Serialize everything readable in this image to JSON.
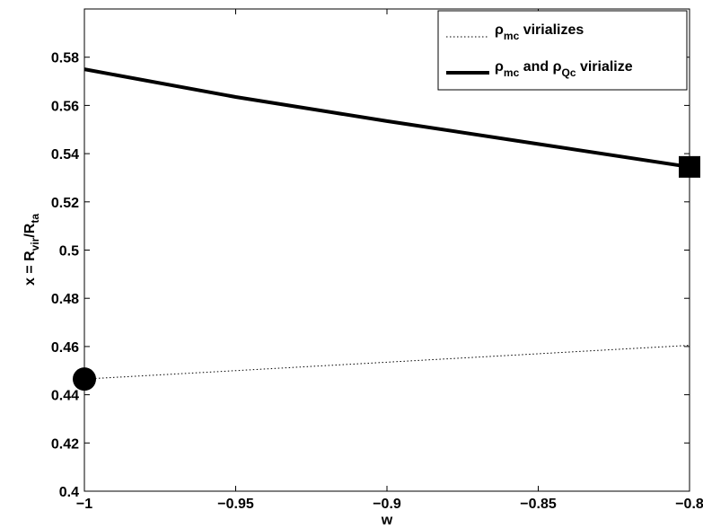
{
  "chart_data": {
    "type": "line",
    "xlabel": "w",
    "ylabel": {
      "prefix": "x = R",
      "sub1": "vir",
      "mid": "/R",
      "sub2": "ta"
    },
    "xlim": [
      -1,
      -0.8
    ],
    "ylim": [
      0.4,
      0.6
    ],
    "xticks": [
      -1,
      -0.95,
      -0.9,
      -0.85,
      -0.8
    ],
    "xtick_labels": [
      "−1",
      "−0.95",
      "−0.9",
      "−0.85",
      "−0.8"
    ],
    "yticks": [
      0.4,
      0.42,
      0.44,
      0.46,
      0.48,
      0.5,
      0.52,
      0.54,
      0.56,
      0.58
    ],
    "ytick_labels": [
      "0.4",
      "0.42",
      "0.44",
      "0.46",
      "0.48",
      "0.5",
      "0.52",
      "0.54",
      "0.56",
      "0.58"
    ],
    "grid": false,
    "legend_position": "top-right",
    "series": [
      {
        "legend": {
          "rho": "ρ",
          "sub1": "mc",
          "text": " virializes"
        },
        "style": "dotted",
        "x": [
          -1,
          -0.95,
          -0.9,
          -0.85,
          -0.8
        ],
        "y": [
          0.4465,
          0.45,
          0.4535,
          0.457,
          0.4605
        ],
        "endpoint_marker": {
          "shape": "circle",
          "x": -1,
          "y": 0.4465
        }
      },
      {
        "legend": {
          "rho": "ρ",
          "sub1": "mc",
          "mid": " and ρ",
          "sub2": "Qc",
          "text": " virialize"
        },
        "style": "solid",
        "x": [
          -1,
          -0.95,
          -0.9,
          -0.85,
          -0.8
        ],
        "y": [
          0.575,
          0.5635,
          0.5535,
          0.544,
          0.5345
        ],
        "endpoint_marker": {
          "shape": "square",
          "x": -0.8,
          "y": 0.5345
        }
      }
    ]
  }
}
